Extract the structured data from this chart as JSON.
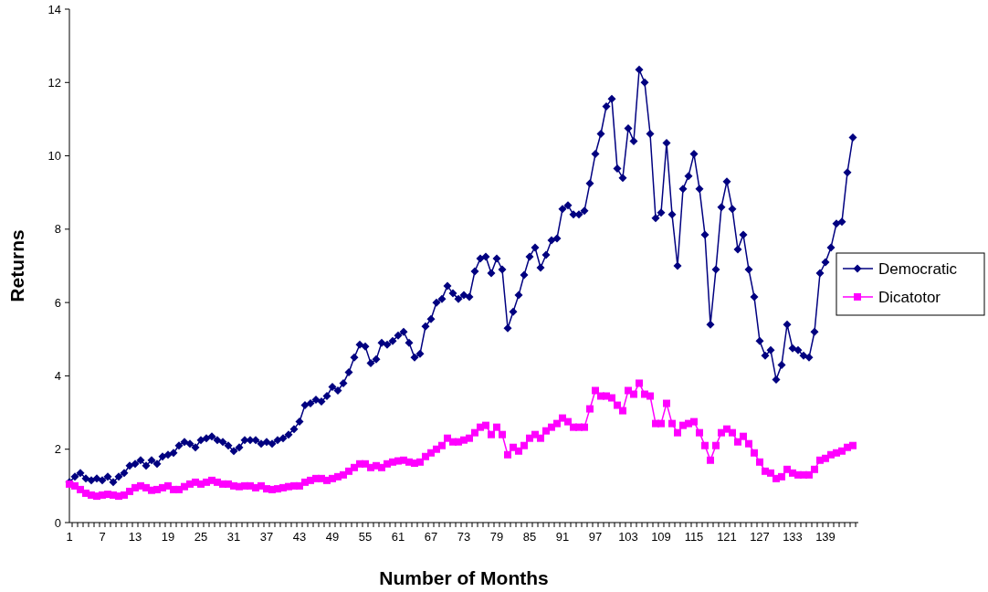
{
  "chart_data": {
    "type": "line",
    "xlabel": "Number of Months",
    "ylabel": "Returns",
    "categories": [
      "1",
      null,
      null,
      null,
      null,
      null,
      "7",
      null,
      null,
      null,
      null,
      null,
      "13",
      null,
      null,
      null,
      null,
      null,
      "19",
      null,
      null,
      null,
      null,
      null,
      "25",
      null,
      null,
      null,
      null,
      null,
      "31",
      null,
      null,
      null,
      null,
      null,
      "37",
      null,
      null,
      null,
      null,
      null,
      "43",
      null,
      null,
      null,
      null,
      null,
      "49",
      null,
      null,
      null,
      null,
      null,
      "55",
      null,
      null,
      null,
      null,
      null,
      "61",
      null,
      null,
      null,
      null,
      null,
      "67",
      null,
      null,
      null,
      null,
      null,
      "73",
      null,
      null,
      null,
      null,
      null,
      "79",
      null,
      null,
      null,
      null,
      null,
      "85",
      null,
      null,
      null,
      null,
      null,
      "91",
      null,
      null,
      null,
      null,
      null,
      "97",
      null,
      null,
      null,
      null,
      null,
      "103",
      null,
      null,
      null,
      null,
      null,
      "109",
      null,
      null,
      null,
      null,
      null,
      "115",
      null,
      null,
      null,
      null,
      null,
      "121",
      null,
      null,
      null,
      null,
      null,
      "127",
      null,
      null,
      null,
      null,
      null,
      "133",
      null,
      null,
      null,
      null,
      null,
      "139",
      null,
      null,
      null,
      null,
      null
    ],
    "series": [
      {
        "name": "Democratic",
        "color": "#000080",
        "marker": "diamond",
        "values": [
          1.1,
          1.25,
          1.35,
          1.2,
          1.15,
          1.2,
          1.15,
          1.25,
          1.1,
          1.25,
          1.35,
          1.55,
          1.6,
          1.7,
          1.55,
          1.7,
          1.6,
          1.8,
          1.85,
          1.9,
          2.1,
          2.2,
          2.15,
          2.05,
          2.25,
          2.3,
          2.35,
          2.25,
          2.2,
          2.1,
          1.95,
          2.05,
          2.25,
          2.25,
          2.25,
          2.15,
          2.2,
          2.15,
          2.25,
          2.3,
          2.4,
          2.55,
          2.75,
          3.2,
          3.25,
          3.35,
          3.3,
          3.45,
          3.7,
          3.6,
          3.8,
          4.1,
          4.5,
          4.85,
          4.8,
          4.35,
          4.45,
          4.9,
          4.85,
          4.95,
          5.1,
          5.2,
          4.9,
          4.5,
          4.6,
          5.35,
          5.55,
          6.0,
          6.1,
          6.45,
          6.25,
          6.1,
          6.2,
          6.15,
          6.85,
          7.2,
          7.25,
          6.8,
          7.2,
          6.9,
          5.3,
          5.75,
          6.2,
          6.75,
          7.25,
          7.5,
          6.95,
          7.3,
          7.7,
          7.75,
          8.55,
          8.65,
          8.4,
          8.4,
          8.5,
          9.25,
          10.05,
          10.6,
          11.35,
          11.55,
          9.65,
          9.4,
          10.75,
          10.4,
          12.35,
          12.0,
          10.6,
          8.3,
          8.45,
          10.35,
          8.4,
          7.0,
          9.1,
          9.45,
          10.05,
          9.1,
          7.85,
          5.4,
          6.9,
          8.6,
          9.3,
          8.55,
          7.45,
          7.85,
          6.9,
          6.15,
          4.95,
          4.55,
          4.7,
          3.9,
          4.3,
          5.4,
          4.75,
          4.7,
          4.55,
          4.5,
          5.2,
          6.8,
          7.1,
          7.5,
          8.15,
          8.2,
          9.55,
          10.5
        ]
      },
      {
        "name": "Dicatotor",
        "color": "#ff00ff",
        "marker": "square",
        "values": [
          1.05,
          1.0,
          0.9,
          0.8,
          0.75,
          0.72,
          0.75,
          0.77,
          0.75,
          0.72,
          0.75,
          0.85,
          0.95,
          1.0,
          0.95,
          0.88,
          0.9,
          0.95,
          1.0,
          0.9,
          0.9,
          0.98,
          1.05,
          1.1,
          1.05,
          1.1,
          1.15,
          1.1,
          1.05,
          1.05,
          1.0,
          0.98,
          1.0,
          1.0,
          0.95,
          1.0,
          0.92,
          0.9,
          0.92,
          0.95,
          0.98,
          1.0,
          1.0,
          1.1,
          1.15,
          1.2,
          1.2,
          1.15,
          1.2,
          1.25,
          1.3,
          1.4,
          1.5,
          1.6,
          1.6,
          1.5,
          1.55,
          1.5,
          1.6,
          1.65,
          1.68,
          1.7,
          1.65,
          1.62,
          1.65,
          1.8,
          1.9,
          2.0,
          2.1,
          2.3,
          2.2,
          2.2,
          2.25,
          2.3,
          2.45,
          2.6,
          2.65,
          2.4,
          2.6,
          2.4,
          1.85,
          2.05,
          1.95,
          2.1,
          2.3,
          2.4,
          2.3,
          2.5,
          2.6,
          2.7,
          2.85,
          2.75,
          2.6,
          2.6,
          2.6,
          3.1,
          3.6,
          3.45,
          3.45,
          3.4,
          3.2,
          3.05,
          3.6,
          3.5,
          3.8,
          3.5,
          3.45,
          2.7,
          2.7,
          3.25,
          2.7,
          2.45,
          2.65,
          2.7,
          2.75,
          2.45,
          2.1,
          1.7,
          2.1,
          2.45,
          2.55,
          2.45,
          2.2,
          2.35,
          2.15,
          1.9,
          1.65,
          1.4,
          1.35,
          1.2,
          1.25,
          1.45,
          1.35,
          1.3,
          1.3,
          1.3,
          1.45,
          1.7,
          1.75,
          1.85,
          1.9,
          1.95,
          2.05,
          2.1
        ]
      }
    ],
    "ylim": [
      0,
      14
    ],
    "yticks": [
      0,
      2,
      4,
      6,
      8,
      10,
      12,
      14
    ],
    "grid": false,
    "legend": "right",
    "line_style": "solid"
  }
}
